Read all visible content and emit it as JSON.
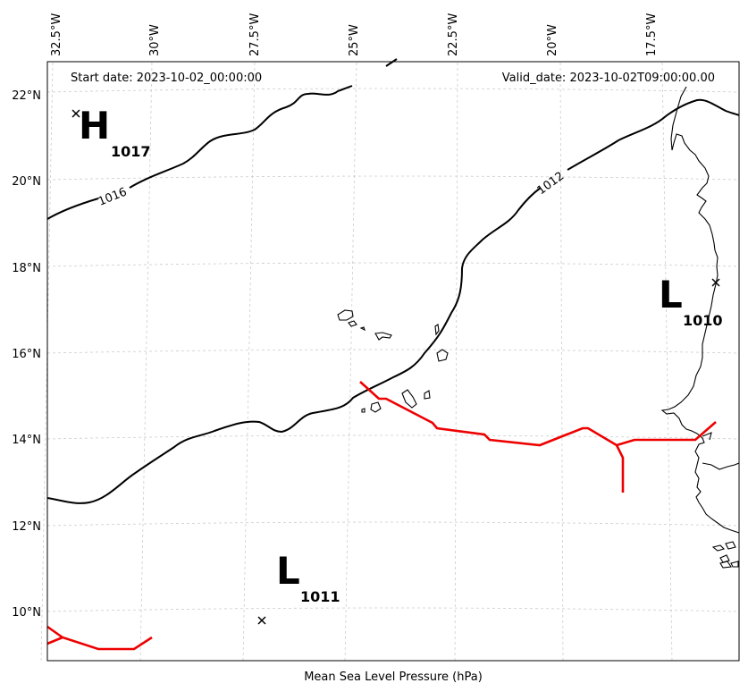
{
  "header": {
    "start_date": "Start date: 2023-10-02_00:00:00",
    "valid_date": "Valid_date: 2023-10-02T09:00:00.00"
  },
  "caption": "Mean Sea Level Pressure (hPa)",
  "axes": {
    "lon_ticks": [
      "32.5°W",
      "30°W",
      "27.5°W",
      "25°W",
      "22.5°W",
      "20°W",
      "17.5°W"
    ],
    "lat_ticks": [
      "22°N",
      "20°N",
      "18°N",
      "16°N",
      "14°N",
      "12°N",
      "10°N"
    ]
  },
  "contours": [
    {
      "level": 1016,
      "label": "1016"
    },
    {
      "level": 1012,
      "label": "1012"
    }
  ],
  "pressure_centers": [
    {
      "type": "H",
      "value": "1017",
      "lon": -32.2,
      "lat": 21.6
    },
    {
      "type": "L",
      "value": "1010",
      "lon": -16.6,
      "lat": 17.6
    },
    {
      "type": "L",
      "value": "1011",
      "lon": -27.5,
      "lat": 9.8
    }
  ],
  "colors": {
    "contour": "#000000",
    "front": "#ee0000",
    "grid": "#cccccc",
    "coast": "#000000"
  }
}
